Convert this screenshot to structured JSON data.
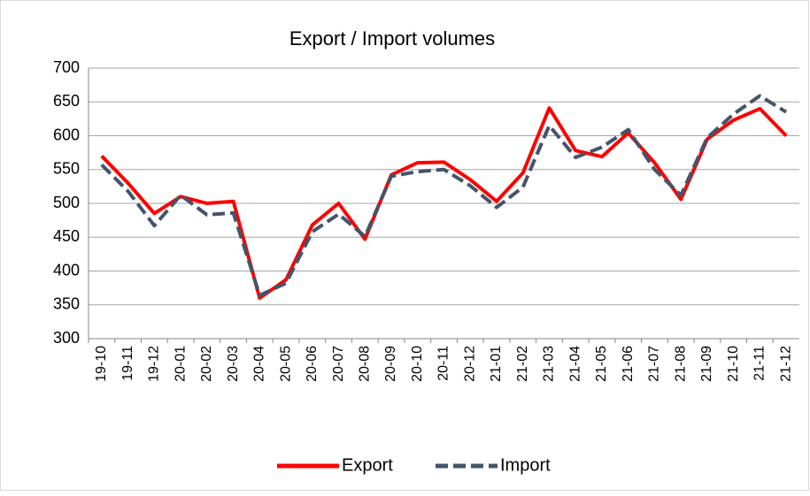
{
  "chart_data": {
    "type": "line",
    "title": "Export / Import  volumes",
    "categories": [
      "19-10",
      "19-11",
      "19-12",
      "20-01",
      "20-02",
      "20-03",
      "20-04",
      "20-05",
      "20-06",
      "20-07",
      "20-08",
      "20-09",
      "20-10",
      "20-11",
      "20-12",
      "21-01",
      "21-02",
      "21-03",
      "21-04",
      "21-05",
      "21-06",
      "21-07",
      "21-08",
      "21-09",
      "21-10",
      "21-11",
      "21-12"
    ],
    "series": [
      {
        "name": "Export",
        "color": "#ff0000",
        "values": [
          570,
          530,
          485,
          510,
          500,
          503,
          360,
          387,
          468,
          500,
          447,
          542,
          560,
          561,
          535,
          503,
          545,
          641,
          578,
          569,
          604,
          560,
          506,
          595,
          623,
          640,
          600
        ]
      },
      {
        "name": "Import",
        "color": "#44546a",
        "values": [
          557,
          518,
          467,
          512,
          483,
          486,
          364,
          382,
          458,
          484,
          451,
          540,
          547,
          550,
          526,
          494,
          524,
          615,
          568,
          583,
          609,
          550,
          512,
          597,
          632,
          659,
          635
        ]
      }
    ],
    "ylim": [
      300,
      700
    ],
    "yticks": [
      300,
      350,
      400,
      450,
      500,
      550,
      600,
      650,
      700
    ],
    "grid": true,
    "legend": "bottom"
  }
}
